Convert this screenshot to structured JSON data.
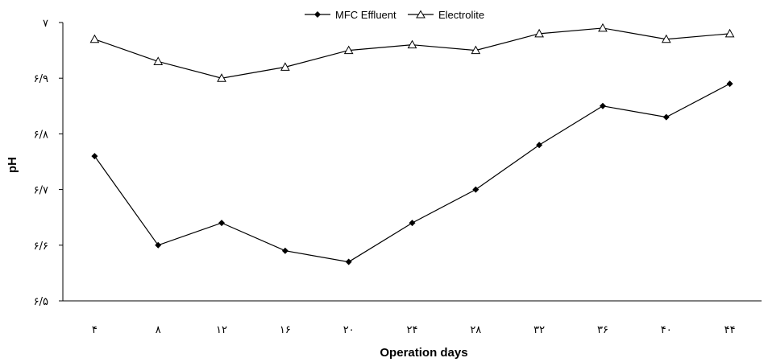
{
  "chart_data": {
    "type": "line",
    "title": "",
    "xlabel": "Operation days",
    "ylabel": "pH",
    "categories": [
      "۴",
      "۸",
      "۱۲",
      "۱۶",
      "۲۰",
      "۲۴",
      "۲۸",
      "۳۲",
      "۳۶",
      "۴۰",
      "۴۴"
    ],
    "x": [
      4,
      8,
      12,
      16,
      20,
      24,
      28,
      32,
      36,
      40,
      44
    ],
    "y_ticks": [
      {
        "value": 6.5,
        "label": "۶/۵"
      },
      {
        "value": 6.6,
        "label": "۶/۶"
      },
      {
        "value": 6.7,
        "label": "۶/۷"
      },
      {
        "value": 6.8,
        "label": "۶/۸"
      },
      {
        "value": 6.9,
        "label": "۶/۹"
      },
      {
        "value": 7.0,
        "label": "۷"
      }
    ],
    "ylim": [
      6.5,
      7.0
    ],
    "grid": false,
    "legend_position": "top-center",
    "series": [
      {
        "name": "MFC Effluent",
        "marker": "diamond",
        "color": "#000000",
        "values": [
          6.76,
          6.6,
          6.64,
          6.59,
          6.57,
          6.64,
          6.7,
          6.78,
          6.85,
          6.83,
          6.89
        ]
      },
      {
        "name": "Electrolite",
        "marker": "triangle-open",
        "color": "#000000",
        "values": [
          6.97,
          6.93,
          6.9,
          6.92,
          6.95,
          6.96,
          6.95,
          6.98,
          6.99,
          6.97,
          6.98
        ]
      }
    ]
  }
}
